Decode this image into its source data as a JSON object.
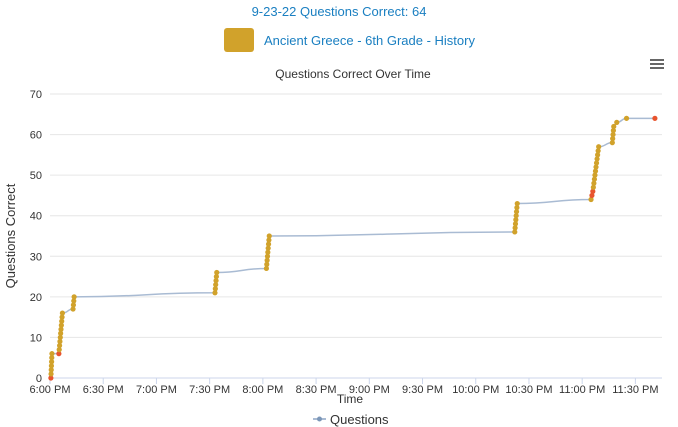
{
  "header": {
    "title": "9-23-22 Questions Correct: 64"
  },
  "subject": {
    "label": "Ancient Greece - 6th Grade - History",
    "color": "#d1a22b"
  },
  "menu": {
    "icon": "hamburger-menu-icon"
  },
  "chart_data": {
    "type": "line",
    "title": "Questions Correct Over Time",
    "xlabel": "Time",
    "ylabel": "Questions Correct",
    "ylim": [
      0,
      70
    ],
    "yticks": [
      0,
      10,
      20,
      30,
      40,
      50,
      60,
      70
    ],
    "xlim_minutes": [
      1080,
      1425
    ],
    "xticks": [
      {
        "m": 1080,
        "label": "6:00 PM"
      },
      {
        "m": 1110,
        "label": "6:30 PM"
      },
      {
        "m": 1140,
        "label": "7:00 PM"
      },
      {
        "m": 1170,
        "label": "7:30 PM"
      },
      {
        "m": 1200,
        "label": "8:00 PM"
      },
      {
        "m": 1230,
        "label": "8:30 PM"
      },
      {
        "m": 1260,
        "label": "9:00 PM"
      },
      {
        "m": 1290,
        "label": "9:30 PM"
      },
      {
        "m": 1320,
        "label": "10:00 PM"
      },
      {
        "m": 1350,
        "label": "10:30 PM"
      },
      {
        "m": 1380,
        "label": "11:00 PM"
      },
      {
        "m": 1410,
        "label": "11:30 PM"
      }
    ],
    "grid": "horizontal",
    "legend_position": "bottom",
    "series": [
      {
        "name": "Questions",
        "line_color": "#a9bbd3",
        "correct_color": "#d1a22b",
        "incorrect_color": "#e8542e",
        "points": [
          {
            "m": 1080.5,
            "y": 0,
            "s": "incorrect"
          },
          {
            "m": 1080.6,
            "y": 1,
            "s": "correct"
          },
          {
            "m": 1080.7,
            "y": 2,
            "s": "correct"
          },
          {
            "m": 1080.8,
            "y": 3,
            "s": "correct"
          },
          {
            "m": 1080.9,
            "y": 4,
            "s": "correct"
          },
          {
            "m": 1081.0,
            "y": 5,
            "s": "correct"
          },
          {
            "m": 1081.1,
            "y": 6,
            "s": "correct"
          },
          {
            "m": 1085.0,
            "y": 6,
            "s": "incorrect"
          },
          {
            "m": 1085.2,
            "y": 7,
            "s": "correct"
          },
          {
            "m": 1085.4,
            "y": 8,
            "s": "correct"
          },
          {
            "m": 1085.6,
            "y": 9,
            "s": "correct"
          },
          {
            "m": 1085.8,
            "y": 10,
            "s": "correct"
          },
          {
            "m": 1086.0,
            "y": 11,
            "s": "correct"
          },
          {
            "m": 1086.2,
            "y": 12,
            "s": "correct"
          },
          {
            "m": 1086.4,
            "y": 13,
            "s": "correct"
          },
          {
            "m": 1086.6,
            "y": 14,
            "s": "correct"
          },
          {
            "m": 1086.8,
            "y": 15,
            "s": "correct"
          },
          {
            "m": 1087.0,
            "y": 16,
            "s": "correct"
          },
          {
            "m": 1093.0,
            "y": 17,
            "s": "correct"
          },
          {
            "m": 1093.2,
            "y": 18,
            "s": "correct"
          },
          {
            "m": 1093.4,
            "y": 19,
            "s": "correct"
          },
          {
            "m": 1093.6,
            "y": 20,
            "s": "correct"
          },
          {
            "m": 1173.0,
            "y": 21,
            "s": "correct"
          },
          {
            "m": 1173.2,
            "y": 22,
            "s": "correct"
          },
          {
            "m": 1173.4,
            "y": 23,
            "s": "correct"
          },
          {
            "m": 1173.6,
            "y": 24,
            "s": "correct"
          },
          {
            "m": 1173.8,
            "y": 25,
            "s": "correct"
          },
          {
            "m": 1174.0,
            "y": 26,
            "s": "correct"
          },
          {
            "m": 1202.0,
            "y": 27,
            "s": "correct"
          },
          {
            "m": 1202.2,
            "y": 28,
            "s": "correct"
          },
          {
            "m": 1202.4,
            "y": 29,
            "s": "correct"
          },
          {
            "m": 1202.6,
            "y": 30,
            "s": "correct"
          },
          {
            "m": 1202.8,
            "y": 31,
            "s": "correct"
          },
          {
            "m": 1203.0,
            "y": 32,
            "s": "correct"
          },
          {
            "m": 1203.2,
            "y": 33,
            "s": "correct"
          },
          {
            "m": 1203.4,
            "y": 34,
            "s": "correct"
          },
          {
            "m": 1203.6,
            "y": 35,
            "s": "correct"
          },
          {
            "m": 1342.0,
            "y": 36,
            "s": "correct"
          },
          {
            "m": 1342.2,
            "y": 37,
            "s": "correct"
          },
          {
            "m": 1342.4,
            "y": 38,
            "s": "correct"
          },
          {
            "m": 1342.6,
            "y": 39,
            "s": "correct"
          },
          {
            "m": 1342.8,
            "y": 40,
            "s": "correct"
          },
          {
            "m": 1343.0,
            "y": 41,
            "s": "correct"
          },
          {
            "m": 1343.2,
            "y": 42,
            "s": "correct"
          },
          {
            "m": 1343.4,
            "y": 43,
            "s": "correct"
          },
          {
            "m": 1385.0,
            "y": 44,
            "s": "correct"
          },
          {
            "m": 1385.5,
            "y": 45,
            "s": "incorrect"
          },
          {
            "m": 1386.0,
            "y": 46,
            "s": "incorrect"
          },
          {
            "m": 1386.3,
            "y": 47,
            "s": "correct"
          },
          {
            "m": 1386.6,
            "y": 48,
            "s": "correct"
          },
          {
            "m": 1386.9,
            "y": 49,
            "s": "correct"
          },
          {
            "m": 1387.2,
            "y": 50,
            "s": "correct"
          },
          {
            "m": 1387.5,
            "y": 51,
            "s": "correct"
          },
          {
            "m": 1387.8,
            "y": 52,
            "s": "correct"
          },
          {
            "m": 1388.1,
            "y": 53,
            "s": "correct"
          },
          {
            "m": 1388.4,
            "y": 54,
            "s": "correct"
          },
          {
            "m": 1388.7,
            "y": 55,
            "s": "correct"
          },
          {
            "m": 1389.0,
            "y": 56,
            "s": "correct"
          },
          {
            "m": 1389.3,
            "y": 57,
            "s": "correct"
          },
          {
            "m": 1397.0,
            "y": 58,
            "s": "correct"
          },
          {
            "m": 1397.2,
            "y": 59,
            "s": "correct"
          },
          {
            "m": 1397.4,
            "y": 60,
            "s": "correct"
          },
          {
            "m": 1397.6,
            "y": 61,
            "s": "correct"
          },
          {
            "m": 1397.8,
            "y": 62,
            "s": "correct"
          },
          {
            "m": 1399.5,
            "y": 63,
            "s": "correct"
          },
          {
            "m": 1405.0,
            "y": 64,
            "s": "correct"
          },
          {
            "m": 1421.0,
            "y": 64,
            "s": "incorrect"
          }
        ]
      }
    ]
  }
}
